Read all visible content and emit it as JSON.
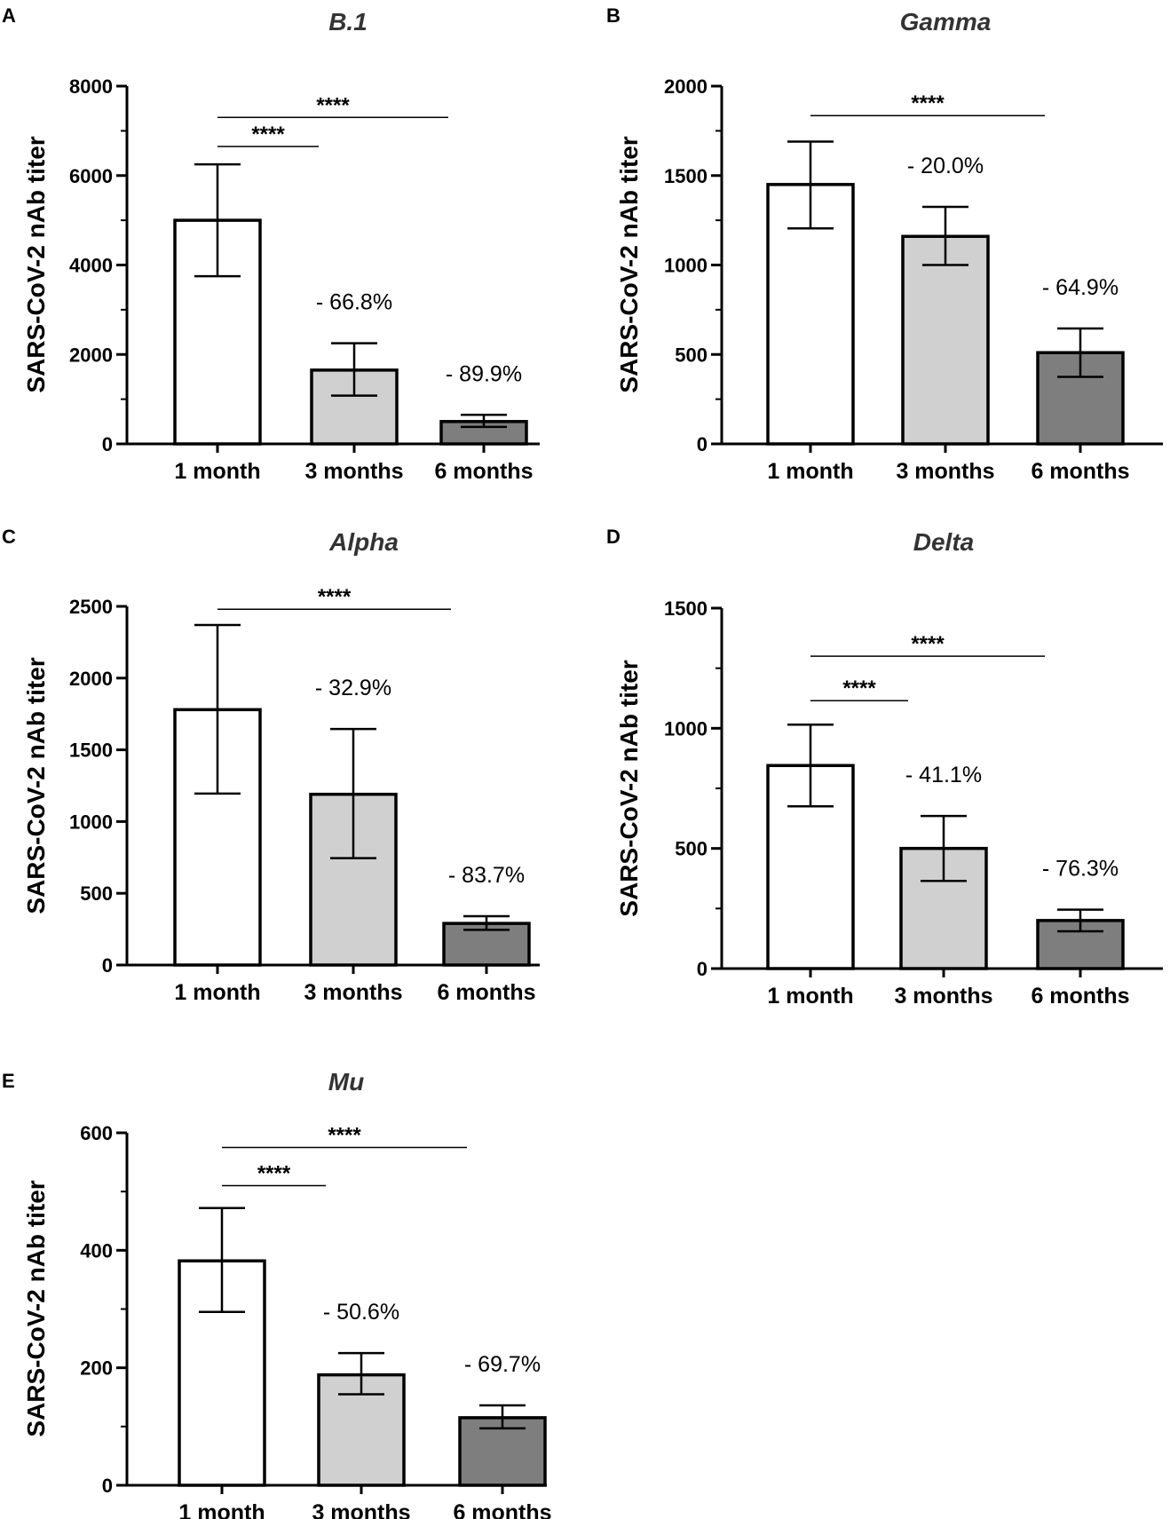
{
  "chart_data": [
    {
      "panel": "A",
      "type": "bar",
      "title": "B.1",
      "xlabel": "",
      "ylabel": "SARS-CoV-2 nAb titer",
      "categories": [
        "1 month",
        "3 months",
        "6 months"
      ],
      "values": [
        5000,
        1650,
        500
      ],
      "errors": [
        [
          3750,
          6250
        ],
        [
          1080,
          2250
        ],
        [
          380,
          650
        ]
      ],
      "colors": [
        "#ffffff",
        "#d0d0d0",
        "#7e7e7e"
      ],
      "ylim": [
        0,
        8000
      ],
      "yticks": [
        0,
        2000,
        4000,
        6000,
        8000
      ],
      "ytick_labels": [
        "0",
        "2000",
        "4000",
        "6000",
        "8000"
      ],
      "minor_ticks": [
        1000,
        3000,
        5000,
        7000
      ],
      "annotations": [
        "",
        "- 66.8%",
        "- 89.9%"
      ],
      "significance": [
        {
          "from": 0,
          "to": 2,
          "label": "****",
          "y": 7300
        },
        {
          "from": 0,
          "to": 1,
          "label": "****",
          "y": 6650
        }
      ]
    },
    {
      "panel": "B",
      "type": "bar",
      "title": "Gamma",
      "xlabel": "",
      "ylabel": "SARS-CoV-2 nAb titer",
      "categories": [
        "1 month",
        "3 months",
        "6 months"
      ],
      "values": [
        1450,
        1160,
        510
      ],
      "errors": [
        [
          1205,
          1690
        ],
        [
          1000,
          1325
        ],
        [
          375,
          645
        ]
      ],
      "colors": [
        "#ffffff",
        "#d0d0d0",
        "#7e7e7e"
      ],
      "ylim": [
        0,
        2000
      ],
      "yticks": [
        0,
        500,
        1000,
        1500,
        2000
      ],
      "ytick_labels": [
        "0",
        "500",
        "1000",
        "1500",
        "2000"
      ],
      "minor_ticks": [
        250,
        750,
        1250,
        1750
      ],
      "annotations": [
        "",
        "- 20.0%",
        "- 64.9%"
      ],
      "significance": [
        {
          "from": 0,
          "to": 2,
          "label": "****",
          "y": 1835
        }
      ]
    },
    {
      "panel": "C",
      "type": "bar",
      "title": "Alpha",
      "xlabel": "",
      "ylabel": "SARS-CoV-2 nAb titer",
      "categories": [
        "1 month",
        "3 months",
        "6 months"
      ],
      "values": [
        1780,
        1190,
        290
      ],
      "errors": [
        [
          1195,
          2370
        ],
        [
          745,
          1645
        ],
        [
          245,
          340
        ]
      ],
      "colors": [
        "#ffffff",
        "#d0d0d0",
        "#7e7e7e"
      ],
      "ylim": [
        0,
        2500
      ],
      "yticks": [
        0,
        500,
        1000,
        1500,
        2000,
        2500
      ],
      "ytick_labels": [
        "0",
        "500",
        "1000",
        "1500",
        "2000",
        "2500"
      ],
      "minor_ticks": [],
      "annotations": [
        "",
        "- 32.9%",
        "- 83.7%"
      ],
      "significance": [
        {
          "from": 0,
          "to": 2,
          "label": "****",
          "y": 2480
        }
      ]
    },
    {
      "panel": "D",
      "type": "bar",
      "title": "Delta",
      "xlabel": "",
      "ylabel": "SARS-CoV-2 nAb titer",
      "categories": [
        "1 month",
        "3 months",
        "6 months"
      ],
      "values": [
        845,
        500,
        200
      ],
      "errors": [
        [
          675,
          1015
        ],
        [
          365,
          635
        ],
        [
          155,
          245
        ]
      ],
      "colors": [
        "#ffffff",
        "#d0d0d0",
        "#7e7e7e"
      ],
      "ylim": [
        0,
        1500
      ],
      "yticks": [
        0,
        500,
        1000,
        1500
      ],
      "ytick_labels": [
        "0",
        "500",
        "1000",
        "1500"
      ],
      "minor_ticks": [
        250,
        750,
        1250
      ],
      "annotations": [
        "",
        "- 41.1%",
        "- 76.3%"
      ],
      "significance": [
        {
          "from": 0,
          "to": 2,
          "label": "****",
          "y": 1300
        },
        {
          "from": 0,
          "to": 1,
          "label": "****",
          "y": 1115
        }
      ]
    },
    {
      "panel": "E",
      "type": "bar",
      "title": "Mu",
      "xlabel": "",
      "ylabel": "SARS-CoV-2 nAb titer",
      "categories": [
        "1 month",
        "3 months",
        "6 months"
      ],
      "values": [
        382,
        188,
        115
      ],
      "errors": [
        [
          295,
          472
        ],
        [
          155,
          225
        ],
        [
          97,
          136
        ]
      ],
      "colors": [
        "#ffffff",
        "#d0d0d0",
        "#7e7e7e"
      ],
      "ylim": [
        0,
        600
      ],
      "yticks": [
        0,
        200,
        400,
        600
      ],
      "ytick_labels": [
        "0",
        "200",
        "400",
        "600"
      ],
      "minor_ticks": [
        100,
        300,
        500
      ],
      "annotations": [
        "",
        "- 50.6%",
        "- 69.7%"
      ],
      "significance": [
        {
          "from": 0,
          "to": 2,
          "label": "****",
          "y": 575
        },
        {
          "from": 0,
          "to": 1,
          "label": "****",
          "y": 510
        }
      ]
    }
  ]
}
